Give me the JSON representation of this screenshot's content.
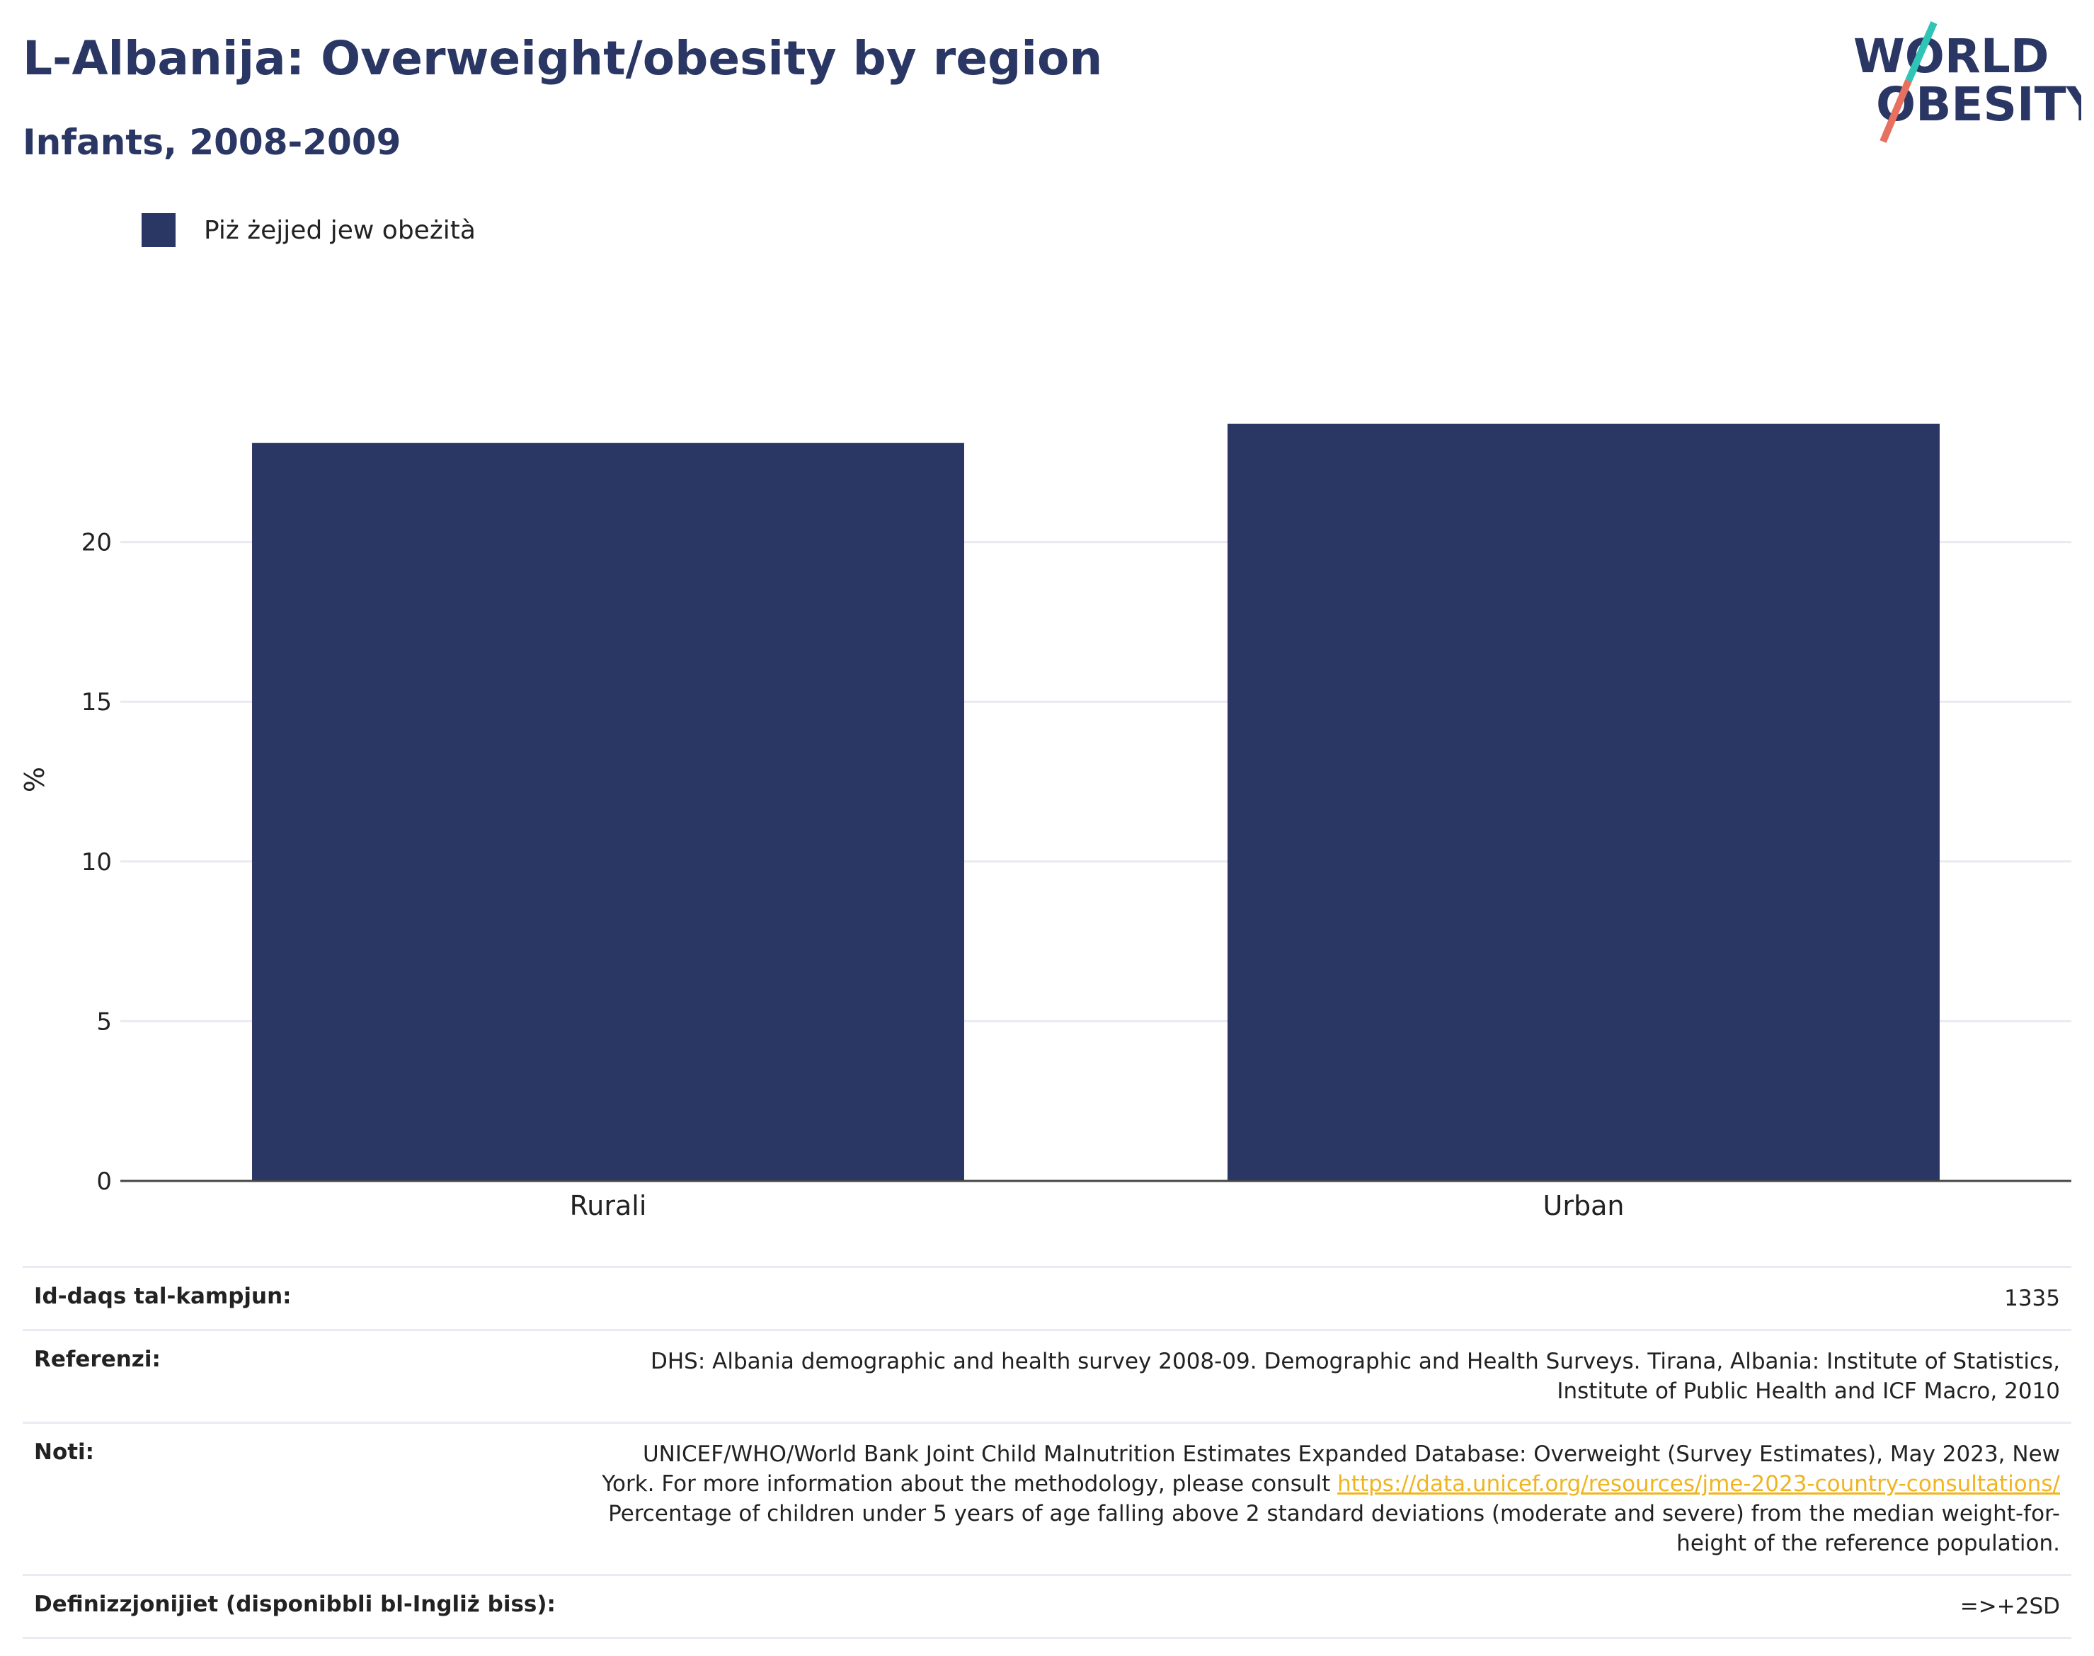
{
  "header": {
    "title": "L-Albanija: Overweight/obesity by region",
    "subtitle": "Infants, 2008-2009"
  },
  "logo": {
    "line1": "WORLD",
    "line2": "OBESITY",
    "colors": {
      "text": "#2a3663",
      "slash_top": "#2ec4b6",
      "slash_bottom": "#e8705f"
    }
  },
  "legend": {
    "items": [
      {
        "label": "Piż żejjed jew obeżità",
        "color": "#2a3663"
      }
    ]
  },
  "chart_data": {
    "type": "bar",
    "categories": [
      "Rurali",
      "Urban"
    ],
    "series": [
      {
        "name": "Piż żejjed jew obeżità",
        "values": [
          23.1,
          23.7
        ],
        "color": "#2a3663"
      }
    ],
    "ylabel": "%",
    "xlabel": "",
    "ylim": [
      0,
      25
    ],
    "yticks": [
      0,
      5,
      10,
      15,
      20
    ],
    "grid": true,
    "legend_position": "top-left"
  },
  "meta": {
    "sample_size": {
      "label": "Id-daqs tal-kampjun:",
      "value": "1335"
    },
    "references": {
      "label": "Referenzi:",
      "value": "DHS: Albania demographic and health survey 2008-09. Demographic and Health Surveys. Tirana, Albania: Institute of Statistics, Institute of Public Health and ICF Macro, 2010"
    },
    "notes": {
      "label": "Noti:",
      "text_before": "UNICEF/WHO/World Bank Joint Child Malnutrition Estimates Expanded Database: Overweight (Survey Estimates), May 2023, New York. For more information about the methodology, please consult ",
      "link": "https://data.unicef.org/resources/jme-2023-country-consultations/",
      "text_after": " Percentage of children under 5 years of age falling above 2 standard deviations (moderate and severe) from the median weight-for-height of the reference population."
    },
    "definitions": {
      "label": "Definizzjonijiet (disponibbli bl-Ingliż biss):",
      "value": "=>+2SD"
    }
  }
}
